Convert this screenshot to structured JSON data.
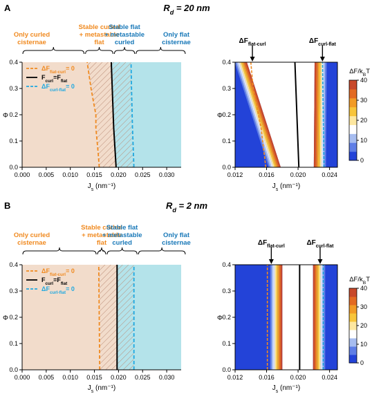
{
  "panels": [
    {
      "letter": "A",
      "heading": "R_d = 20 nm",
      "heading_main": "R",
      "heading_sub": "d",
      "heading_rest": " = 20 nm",
      "regions": [
        {
          "lines": [
            "Only curled",
            "cisternae"
          ],
          "color": "#f08a20",
          "x_range": [
            0.0,
            0.013
          ]
        },
        {
          "lines": [
            "Stable curled",
            "+ metastable",
            "flat"
          ],
          "color": "#f08a20",
          "x_range": [
            0.013,
            0.019
          ]
        },
        {
          "lines": [
            "Stable flat",
            "+ metastable",
            "curled"
          ],
          "color": "#1878b8",
          "x_range": [
            0.019,
            0.0235
          ]
        },
        {
          "lines": [
            "Only flat",
            "cisternae"
          ],
          "color": "#1878b8",
          "x_range": [
            0.0235,
            0.034
          ]
        }
      ],
      "left_chart": {
        "type": "area",
        "xlim": [
          0.0,
          0.033
        ],
        "ylim": [
          0.0,
          0.4
        ],
        "xlabel": "J_s (nm⁻¹)",
        "ylabel": "Φ",
        "xticks": [
          "0.000",
          "0.005",
          "0.010",
          "0.015",
          "0.020",
          "0.025",
          "0.030"
        ],
        "yticks": [
          "0.0",
          "0.1",
          "0.2",
          "0.3",
          "0.4"
        ],
        "curl_line": {
          "x": [
            0.016,
            0.0158,
            0.0153,
            0.0153,
            0.0143,
            0.0135
          ],
          "y": [
            0.0,
            0.05,
            0.15,
            0.2,
            0.3,
            0.4
          ]
        },
        "equal_line": {
          "x": [
            0.0195,
            0.019,
            0.0187,
            0.0185
          ],
          "y": [
            0.0,
            0.15,
            0.3,
            0.4
          ]
        },
        "flat_line": {
          "x": [
            0.0232,
            0.0229,
            0.0227,
            0.0226
          ],
          "y": [
            0.0,
            0.15,
            0.3,
            0.4
          ]
        }
      },
      "right_chart": {
        "type": "heatmap",
        "xlim": [
          0.012,
          0.025
        ],
        "ylim": [
          0.0,
          0.4
        ],
        "xlabel": "J_s (nm⁻¹)",
        "ylabel": "Φ",
        "xticks": [
          "0.012",
          "0.016",
          "0.020",
          "0.024"
        ],
        "yticks": [
          "0.0",
          "0.1",
          "0.2",
          "0.3",
          "0.4"
        ],
        "arrow_labels": [
          {
            "main": "ΔF",
            "sub": "flat-curl",
            "x": 0.0142
          },
          {
            "main": "ΔF",
            "sub": "curl-flat",
            "x": 0.0231
          }
        ],
        "left_band_x": [
          0.0178,
          0.0135
        ],
        "right_band_x": [
          0.022,
          0.0221
        ],
        "black_line": {
          "x": [
            0.0201,
            0.0196
          ],
          "y": [
            0.0,
            0.4
          ]
        },
        "orange_dash": {
          "x": [
            0.0159,
            0.0153,
            0.0143,
            0.014
          ],
          "y": [
            0.0,
            0.15,
            0.3,
            0.4
          ]
        },
        "blue_dash": {
          "x": [
            0.0233,
            0.0231
          ],
          "y": [
            0.0,
            0.4
          ]
        }
      }
    },
    {
      "letter": "B",
      "heading": "R_d = 2 nm",
      "heading_main": "R",
      "heading_sub": "d",
      "heading_rest": " = 2 nm",
      "regions": [
        {
          "lines": [
            "Only curled",
            "cisternae"
          ],
          "color": "#f08a20",
          "x_range": [
            0.0,
            0.0155
          ]
        },
        {
          "lines": [
            "Stable curled",
            "+ metastable",
            "flat"
          ],
          "color": "#f08a20",
          "x_range": [
            0.0155,
            0.0175
          ]
        },
        {
          "lines": [
            "Stable flat",
            "+ metastable",
            "curled"
          ],
          "color": "#1878b8",
          "x_range": [
            0.0175,
            0.024
          ]
        },
        {
          "lines": [
            "Only flat",
            "cisternae"
          ],
          "color": "#1878b8",
          "x_range": [
            0.024,
            0.034
          ]
        }
      ],
      "left_chart": {
        "type": "area",
        "xlim": [
          0.0,
          0.033
        ],
        "ylim": [
          0.0,
          0.4
        ],
        "xlabel": "J_s (nm⁻¹)",
        "ylabel": "Φ",
        "xticks": [
          "0.000",
          "0.005",
          "0.010",
          "0.015",
          "0.020",
          "0.025",
          "0.030"
        ],
        "yticks": [
          "0.0",
          "0.1",
          "0.2",
          "0.3",
          "0.4"
        ],
        "curl_line": {
          "x": [
            0.0161,
            0.016,
            0.0159
          ],
          "y": [
            0.0,
            0.2,
            0.4
          ]
        },
        "equal_line": {
          "x": [
            0.0197,
            0.0197
          ],
          "y": [
            0.0,
            0.4
          ]
        },
        "flat_line": {
          "x": [
            0.0232,
            0.0232
          ],
          "y": [
            0.0,
            0.4
          ]
        }
      },
      "right_chart": {
        "type": "heatmap",
        "xlim": [
          0.012,
          0.025
        ],
        "ylim": [
          0.0,
          0.4
        ],
        "xlabel": "J_s (nm⁻¹)",
        "ylabel": "Φ",
        "xticks": [
          "0.012",
          "0.016",
          "0.020",
          "0.024"
        ],
        "yticks": [
          "0.0",
          "0.1",
          "0.2",
          "0.3",
          "0.4"
        ],
        "arrow_labels": [
          {
            "main": "ΔF",
            "sub": "flat-curl",
            "x": 0.0166
          },
          {
            "main": "ΔF",
            "sub": "curl-flat",
            "x": 0.0228
          }
        ],
        "left_band_x": [
          0.018,
          0.018
        ],
        "right_band_x": [
          0.0219,
          0.0219
        ],
        "black_line": {
          "x": [
            0.0202,
            0.0202
          ],
          "y": [
            0.0,
            0.4
          ]
        },
        "orange_dash": {
          "x": [
            0.0161,
            0.0161
          ],
          "y": [
            0.0,
            0.4
          ]
        },
        "blue_dash": {
          "x": [
            0.0232,
            0.0232
          ],
          "y": [
            0.0,
            0.4
          ]
        }
      }
    }
  ],
  "legend": [
    {
      "main": "ΔF",
      "sub": "flat-curl",
      "rest": "= 0",
      "color": "#f08a20",
      "style": "dashed"
    },
    {
      "main": "F",
      "sub": "curl",
      "rest": "=F",
      "sub2": "flat",
      "color": "#000000",
      "style": "solid"
    },
    {
      "main": "ΔF",
      "sub": "curl-flat",
      "rest": "= 0",
      "color": "#1fa8e0",
      "style": "dashed"
    }
  ],
  "colorbar": {
    "title_main": "ΔF/k",
    "title_sub": "B",
    "title_rest": "T",
    "ticks": [
      "0",
      "10",
      "20",
      "30",
      "40"
    ],
    "range": [
      0,
      40
    ],
    "colors": [
      "#2343d8",
      "#5f7ee6",
      "#a7bdf0",
      "#ffffff",
      "#fde7a0",
      "#f8c53a",
      "#f29b26",
      "#e36a22",
      "#c8482a"
    ]
  },
  "colors": {
    "curled_fill": "#f2dccb",
    "flat_fill": "#b4e3ea",
    "hatch": "#c08a70",
    "orange": "#f08a20",
    "black": "#000000",
    "blue": "#1fa8e0",
    "heat_low": "#2343d8"
  }
}
